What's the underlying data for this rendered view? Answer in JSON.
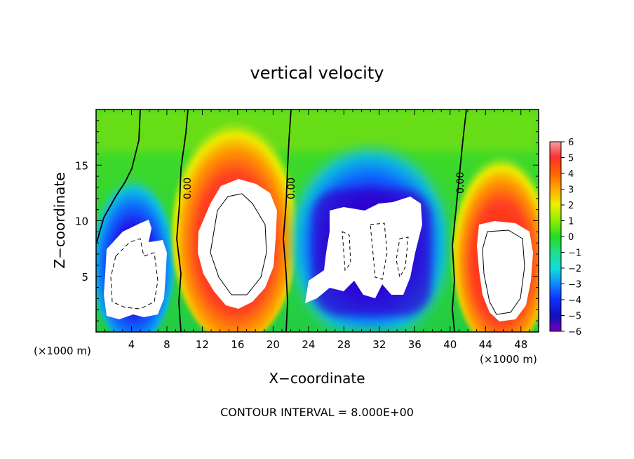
{
  "chart_data": {
    "type": "heatmap",
    "title": "vertical velocity",
    "xlabel": "X−coordinate",
    "ylabel": "Z−coordinate",
    "x_unit": "(×1000 m)",
    "x_unit_right": "(×1000 m)",
    "xlim": [
      0,
      50
    ],
    "ylim": [
      0,
      20
    ],
    "x_ticks": [
      4,
      8,
      12,
      16,
      20,
      24,
      28,
      32,
      36,
      40,
      44,
      48
    ],
    "y_ticks": [
      5,
      10,
      15
    ],
    "colorbar": {
      "ticks": [
        "6",
        "5",
        "4",
        "3",
        "2",
        "1",
        "0",
        "−1",
        "−2",
        "−3",
        "−4",
        "−5",
        "−6"
      ],
      "range": [
        -6,
        6
      ]
    },
    "contour_labels": [
      "0.00",
      "0.00",
      "0.00"
    ],
    "contour_interval_text": "CONTOUR INTERVAL = 8.000E+00",
    "colors": {
      "max": "#f07070",
      "positive": "#ff2020",
      "mid_positive": "#ffcc00",
      "zero": "#33dd33",
      "negative": "#2080ff",
      "min": "#6600aa",
      "saturated": "#ffffff"
    }
  }
}
